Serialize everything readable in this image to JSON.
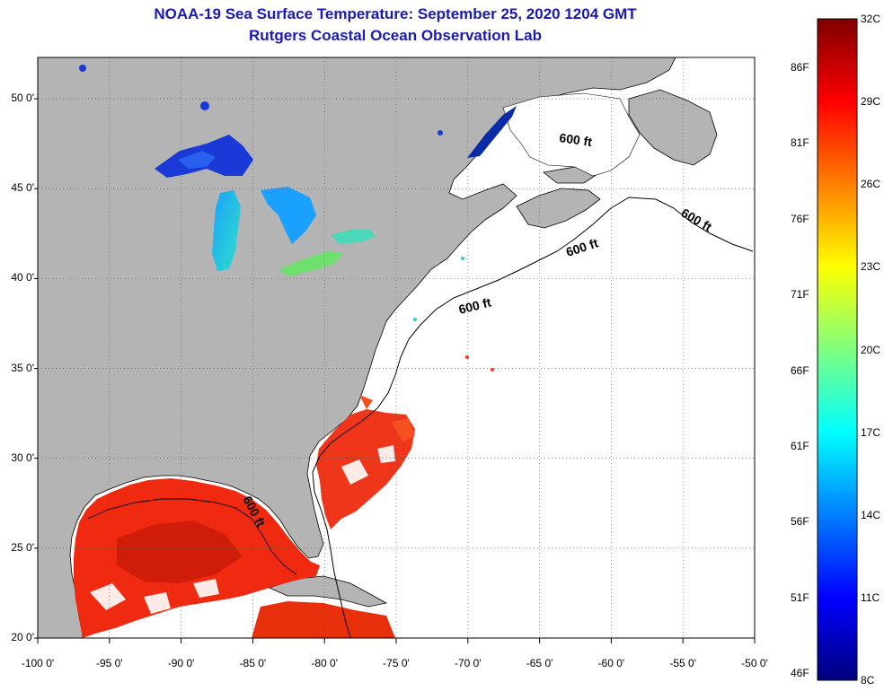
{
  "title": {
    "line1": "NOAA-19 Sea Surface Temperature:  September 25, 2020 1204 GMT",
    "line2": "Rutgers Coastal Ocean Observation Lab"
  },
  "map": {
    "lon_range": [
      -100,
      -50
    ],
    "lat_range": [
      20,
      52.3
    ],
    "lat_ticks": [
      {
        "value": 50,
        "label": "50 0'"
      },
      {
        "value": 45,
        "label": "45 0'"
      },
      {
        "value": 40,
        "label": "40 0'"
      },
      {
        "value": 35,
        "label": "35 0'"
      },
      {
        "value": 30,
        "label": "30 0'"
      },
      {
        "value": 25,
        "label": "25 0'"
      },
      {
        "value": 20,
        "label": "20 0'"
      }
    ],
    "lon_ticks": [
      {
        "value": -100,
        "label": "-100 0'"
      },
      {
        "value": -95,
        "label": "-95 0'"
      },
      {
        "value": -90,
        "label": "-90 0'"
      },
      {
        "value": -85,
        "label": "-85 0'"
      },
      {
        "value": -80,
        "label": "-80 0'"
      },
      {
        "value": -75,
        "label": "-75 0'"
      },
      {
        "value": -70,
        "label": "-70 0'"
      },
      {
        "value": -65,
        "label": "-65 0'"
      },
      {
        "value": -60,
        "label": "-60 0'"
      },
      {
        "value": -55,
        "label": "-55 0'"
      },
      {
        "value": -50,
        "label": "-50 0'"
      }
    ],
    "contour_label": "600 ft",
    "contour_label_count": 5,
    "land_color": "#b4b4b4",
    "grid": true
  },
  "colorbar": {
    "range_c": [
      8,
      32
    ],
    "colors": [
      "#00007f",
      "#0000ff",
      "#007fff",
      "#00ffff",
      "#7fff7f",
      "#ffff00",
      "#ff7f00",
      "#ff0000",
      "#7f0000"
    ],
    "fahrenheit_labels": [
      "86F",
      "81F",
      "76F",
      "71F",
      "66F",
      "61F",
      "56F",
      "51F",
      "46F"
    ],
    "celsius_labels": [
      "32C",
      "29C",
      "26C",
      "23C",
      "20C",
      "17C",
      "14C",
      "11C",
      "8C"
    ]
  }
}
